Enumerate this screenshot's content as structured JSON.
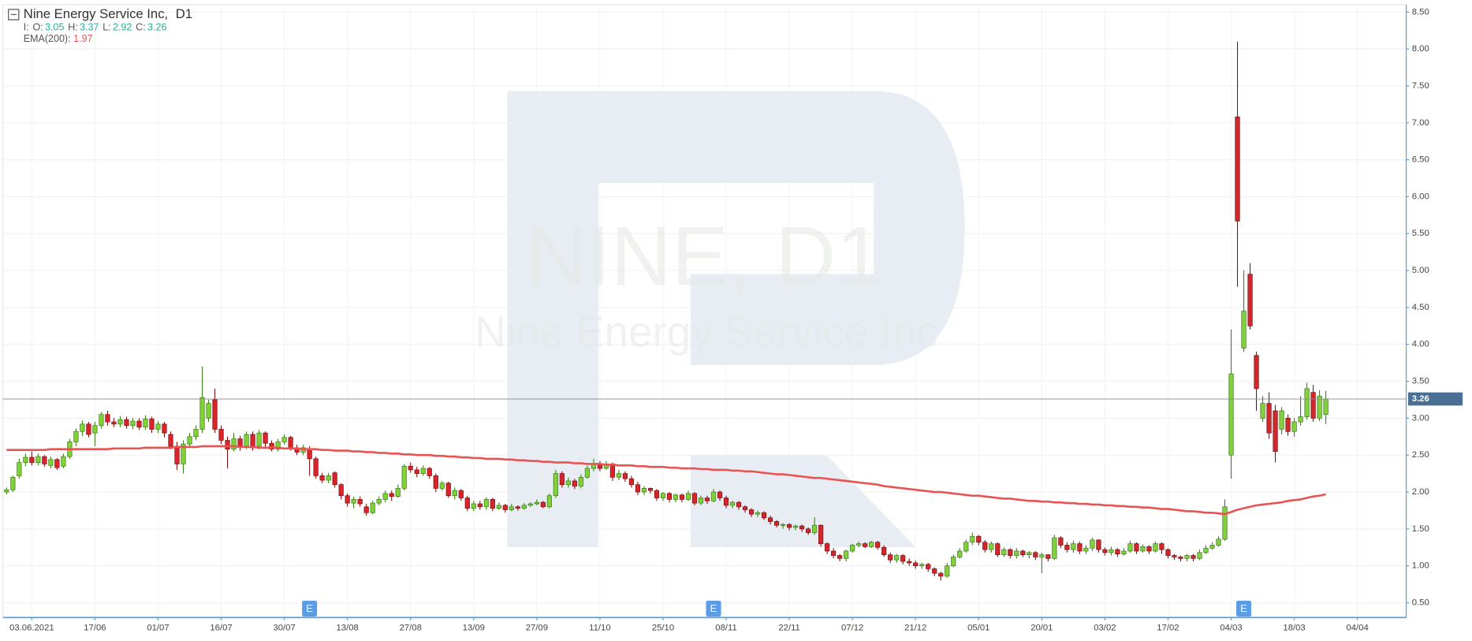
{
  "chart_data": {
    "type": "candlestick",
    "title": "Nine Energy Service Inc,",
    "timeframe": "D1",
    "ohlc_prefix": "I:",
    "ohlc_labels": {
      "open": "O:",
      "high": "H:",
      "low": "L:",
      "close": "C:"
    },
    "watermark": {
      "symbol": "NINE, D1",
      "name": "Nine Energy Service Inc"
    },
    "colors": {
      "up": "#82d13a",
      "up_edge": "#3b7d1a",
      "down": "#d6262b",
      "down_edge": "#7a1010",
      "ohlc_text": "#26b39a"
    },
    "grid": true,
    "ylim": [
      0.3,
      8.6
    ],
    "yticks": [
      {
        "value": 0.5,
        "label": "0.50"
      },
      {
        "value": 1,
        "label": "1.00"
      },
      {
        "value": 1.5,
        "label": "1.50"
      },
      {
        "value": 2,
        "label": "2.00"
      },
      {
        "value": 2.5,
        "label": "2.50"
      },
      {
        "value": 3,
        "label": "3.00"
      },
      {
        "value": 3.5,
        "label": "3.50"
      },
      {
        "value": 4,
        "label": "4.00"
      },
      {
        "value": 4.5,
        "label": "4.50"
      },
      {
        "value": 5,
        "label": "5.00"
      },
      {
        "value": 5.5,
        "label": "5.50"
      },
      {
        "value": 6,
        "label": "6.00"
      },
      {
        "value": 6.5,
        "label": "6.50"
      },
      {
        "value": 7,
        "label": "7.00"
      },
      {
        "value": 7.5,
        "label": "7.50"
      },
      {
        "value": 8,
        "label": "8.00"
      },
      {
        "value": 8.5,
        "label": "8.50"
      }
    ],
    "earnings": {
      "label": "E",
      "at": [
        48,
        112,
        196
      ]
    },
    "categories": [
      null,
      null,
      null,
      null,
      "03.06.2021",
      null,
      null,
      null,
      null,
      null,
      null,
      null,
      null,
      null,
      "17/06",
      null,
      null,
      null,
      null,
      null,
      null,
      null,
      null,
      null,
      "01/07",
      null,
      null,
      null,
      null,
      null,
      null,
      null,
      null,
      null,
      "16/07",
      null,
      null,
      null,
      null,
      null,
      null,
      null,
      null,
      null,
      "30/07",
      null,
      null,
      null,
      null,
      null,
      null,
      null,
      null,
      null,
      "13/08",
      null,
      null,
      null,
      null,
      null,
      null,
      null,
      null,
      null,
      "27/08",
      null,
      null,
      null,
      null,
      null,
      null,
      null,
      null,
      null,
      "13/09",
      null,
      null,
      null,
      null,
      null,
      null,
      null,
      null,
      null,
      "27/09",
      null,
      null,
      null,
      null,
      null,
      null,
      null,
      null,
      null,
      "11/10",
      null,
      null,
      null,
      null,
      null,
      null,
      null,
      null,
      null,
      "25/10",
      null,
      null,
      null,
      null,
      null,
      null,
      null,
      null,
      null,
      "08/11",
      null,
      null,
      null,
      null,
      null,
      null,
      null,
      null,
      null,
      "22/11",
      null,
      null,
      null,
      null,
      null,
      null,
      null,
      null,
      null,
      "07/12",
      null,
      null,
      null,
      null,
      null,
      null,
      null,
      null,
      null,
      "21/12",
      null,
      null,
      null,
      null,
      null,
      null,
      null,
      null,
      null,
      "05/01",
      null,
      null,
      null,
      null,
      null,
      null,
      null,
      null,
      null,
      "20/01",
      null,
      null,
      null,
      null,
      null,
      null,
      null,
      null,
      null,
      "03/02",
      null,
      null,
      null,
      null,
      null,
      null,
      null,
      null,
      null,
      "17/02",
      null,
      null,
      null,
      null,
      null,
      null,
      null,
      null,
      null,
      "04/03",
      null,
      null,
      null,
      null,
      null,
      null,
      null,
      null,
      null,
      "18/03",
      null,
      null,
      null,
      null,
      null,
      null,
      null,
      null,
      null,
      "04/04"
    ],
    "open": [
      2.0,
      2.03,
      2.22,
      2.4,
      2.47,
      2.4,
      2.48,
      2.36,
      2.44,
      2.35,
      2.48,
      2.68,
      2.82,
      2.92,
      2.8,
      2.9,
      3.05,
      2.95,
      2.92,
      2.98,
      2.9,
      2.96,
      2.88,
      2.99,
      2.85,
      2.92,
      2.78,
      2.62,
      2.38,
      2.65,
      2.75,
      2.85,
      3.0,
      3.25,
      2.85,
      2.7,
      2.58,
      2.72,
      2.62,
      2.78,
      2.62,
      2.8,
      2.66,
      2.58,
      2.68,
      2.74,
      2.6,
      2.54,
      2.58,
      2.45,
      2.22,
      2.16,
      2.26,
      2.1,
      1.95,
      1.85,
      1.9,
      1.8,
      1.72,
      1.85,
      1.9,
      1.98,
      1.94,
      2.05,
      2.35,
      2.3,
      2.25,
      2.32,
      2.22,
      2.05,
      2.12,
      1.95,
      2.02,
      1.92,
      1.78,
      1.84,
      1.8,
      1.9,
      1.78,
      1.82,
      1.76,
      1.8,
      1.78,
      1.82,
      1.84,
      1.86,
      1.8,
      1.95,
      2.25,
      2.1,
      2.15,
      2.08,
      2.2,
      2.32,
      2.38,
      2.32,
      2.38,
      2.2,
      2.25,
      2.18,
      2.1,
      2.0,
      2.05,
      2.02,
      1.92,
      1.98,
      1.9,
      1.96,
      1.9,
      1.98,
      1.85,
      1.92,
      1.88,
      2.0,
      1.92,
      1.82,
      1.86,
      1.8,
      1.76,
      1.7,
      1.72,
      1.65,
      1.6,
      1.55,
      1.56,
      1.52,
      1.54,
      1.5,
      1.45,
      1.55,
      1.3,
      1.2,
      1.14,
      1.1,
      1.2,
      1.28,
      1.3,
      1.26,
      1.32,
      1.25,
      1.15,
      1.08,
      1.14,
      1.06,
      1.04,
      1.0,
      1.02,
      0.96,
      0.9,
      0.86,
      1.0,
      1.12,
      1.2,
      1.32,
      1.4,
      1.32,
      1.22,
      1.3,
      1.15,
      1.22,
      1.14,
      1.2,
      1.15,
      1.18,
      1.12,
      1.15,
      1.1,
      1.38,
      1.28,
      1.22,
      1.3,
      1.2,
      1.24,
      1.35,
      1.22,
      1.18,
      1.22,
      1.16,
      1.2,
      1.3,
      1.2,
      1.26,
      1.2,
      1.3,
      1.22,
      1.14,
      1.12,
      1.1,
      1.14,
      1.1,
      1.18,
      1.24,
      1.28,
      1.36,
      2.5,
      7.08,
      3.95,
      4.95,
      3.85,
      3.0,
      3.2,
      3.1,
      2.85,
      3.0,
      2.82,
      2.95,
      3.02,
      3.35,
      3.0,
      3.05,
      null,
      null,
      null,
      null,
      null
    ],
    "high": [
      2.06,
      2.22,
      2.45,
      2.52,
      2.55,
      2.52,
      2.5,
      2.48,
      2.46,
      2.52,
      2.72,
      2.86,
      2.97,
      2.95,
      2.95,
      3.08,
      3.1,
      3.0,
      3.03,
      3.02,
      3.0,
      3.0,
      3.04,
      3.02,
      2.96,
      2.95,
      2.82,
      2.68,
      2.7,
      2.8,
      2.9,
      3.7,
      3.25,
      3.4,
      2.9,
      2.75,
      2.8,
      2.76,
      2.82,
      2.82,
      2.84,
      2.82,
      2.7,
      2.72,
      2.78,
      2.76,
      2.64,
      2.64,
      2.62,
      2.48,
      2.26,
      2.26,
      2.28,
      2.12,
      1.98,
      1.94,
      1.94,
      1.84,
      1.88,
      1.94,
      2.02,
      2.02,
      2.1,
      2.38,
      2.4,
      2.34,
      2.36,
      2.34,
      2.25,
      2.15,
      2.14,
      2.06,
      2.04,
      1.95,
      1.88,
      1.88,
      1.93,
      1.92,
      1.86,
      1.84,
      1.84,
      1.82,
      1.85,
      1.86,
      1.9,
      1.88,
      1.98,
      2.3,
      2.28,
      2.2,
      2.18,
      2.24,
      2.36,
      2.45,
      2.42,
      2.42,
      2.4,
      2.3,
      2.28,
      2.22,
      2.14,
      2.08,
      2.06,
      2.04,
      2.0,
      2.0,
      1.98,
      1.98,
      2.02,
      2.0,
      1.95,
      1.95,
      2.04,
      2.02,
      1.95,
      1.88,
      1.88,
      1.82,
      1.78,
      1.75,
      1.74,
      1.68,
      1.62,
      1.58,
      1.58,
      1.56,
      1.56,
      1.52,
      1.66,
      1.56,
      1.32,
      1.24,
      1.16,
      1.22,
      1.3,
      1.33,
      1.32,
      1.34,
      1.34,
      1.28,
      1.18,
      1.16,
      1.16,
      1.1,
      1.07,
      1.04,
      1.04,
      0.98,
      0.92,
      1.04,
      1.15,
      1.24,
      1.35,
      1.45,
      1.42,
      1.35,
      1.33,
      1.32,
      1.25,
      1.24,
      1.24,
      1.22,
      1.2,
      1.2,
      1.18,
      1.16,
      1.42,
      1.4,
      1.32,
      1.34,
      1.33,
      1.28,
      1.38,
      1.36,
      1.25,
      1.26,
      1.24,
      1.24,
      1.34,
      1.32,
      1.29,
      1.28,
      1.33,
      1.32,
      1.24,
      1.16,
      1.14,
      1.16,
      1.16,
      1.22,
      1.28,
      1.32,
      1.4,
      1.9,
      4.2,
      8.1,
      5.0,
      5.1,
      3.9,
      3.3,
      3.35,
      3.18,
      3.15,
      3.05,
      3.0,
      3.3,
      3.48,
      3.45,
      3.38,
      3.37,
      null,
      null,
      null,
      null,
      null
    ],
    "low": [
      1.97,
      2.0,
      2.18,
      2.35,
      2.36,
      2.36,
      2.34,
      2.32,
      2.3,
      2.32,
      2.45,
      2.62,
      2.76,
      2.74,
      2.62,
      2.86,
      2.9,
      2.88,
      2.88,
      2.86,
      2.85,
      2.84,
      2.84,
      2.8,
      2.8,
      2.74,
      2.58,
      2.3,
      2.25,
      2.6,
      2.7,
      2.8,
      2.95,
      2.8,
      2.65,
      2.32,
      2.55,
      2.56,
      2.58,
      2.56,
      2.58,
      2.6,
      2.55,
      2.55,
      2.64,
      2.56,
      2.5,
      2.5,
      2.22,
      2.18,
      2.12,
      2.12,
      2.06,
      1.9,
      1.8,
      1.78,
      1.8,
      1.68,
      1.7,
      1.82,
      1.86,
      1.88,
      1.92,
      2.02,
      2.26,
      2.2,
      2.22,
      2.18,
      2.0,
      2.02,
      1.92,
      1.9,
      1.88,
      1.74,
      1.74,
      1.76,
      1.76,
      1.74,
      1.76,
      1.72,
      1.74,
      1.75,
      1.76,
      1.8,
      1.82,
      1.78,
      1.78,
      1.92,
      2.06,
      2.06,
      2.04,
      2.05,
      2.18,
      2.28,
      2.28,
      2.3,
      2.15,
      2.16,
      2.14,
      2.06,
      1.96,
      1.96,
      1.98,
      1.88,
      1.88,
      1.86,
      1.86,
      1.86,
      1.88,
      1.82,
      1.82,
      1.84,
      1.86,
      1.88,
      1.78,
      1.78,
      1.76,
      1.72,
      1.66,
      1.66,
      1.62,
      1.56,
      1.52,
      1.5,
      1.48,
      1.48,
      1.46,
      1.42,
      1.42,
      1.26,
      1.16,
      1.1,
      1.06,
      1.06,
      1.18,
      1.25,
      1.24,
      1.24,
      1.22,
      1.12,
      1.04,
      1.04,
      1.02,
      1.0,
      0.96,
      0.96,
      0.92,
      0.86,
      0.8,
      0.84,
      0.98,
      1.1,
      1.18,
      1.28,
      1.28,
      1.18,
      1.18,
      1.12,
      1.12,
      1.1,
      1.1,
      1.12,
      1.1,
      1.08,
      0.9,
      1.06,
      1.08,
      1.24,
      1.18,
      1.18,
      1.16,
      1.16,
      1.2,
      1.18,
      1.14,
      1.14,
      1.12,
      1.14,
      1.18,
      1.16,
      1.18,
      1.16,
      1.18,
      1.16,
      1.1,
      1.08,
      1.06,
      1.06,
      1.06,
      1.08,
      1.16,
      1.22,
      1.26,
      1.34,
      2.18,
      4.78,
      3.9,
      4.2,
      3.1,
      2.95,
      2.72,
      2.4,
      2.78,
      2.76,
      2.75,
      2.9,
      2.98,
      2.95,
      2.96,
      2.92,
      null,
      null,
      null,
      null,
      null
    ],
    "close": [
      2.03,
      2.2,
      2.4,
      2.47,
      2.4,
      2.48,
      2.38,
      2.44,
      2.33,
      2.48,
      2.68,
      2.82,
      2.92,
      2.78,
      2.9,
      3.05,
      2.95,
      2.92,
      2.98,
      2.9,
      2.96,
      2.88,
      2.99,
      2.85,
      2.92,
      2.8,
      2.62,
      2.38,
      2.65,
      2.75,
      2.85,
      3.28,
      3.2,
      2.85,
      2.7,
      2.58,
      2.72,
      2.62,
      2.78,
      2.6,
      2.8,
      2.66,
      2.58,
      2.68,
      2.74,
      2.6,
      2.54,
      2.6,
      2.45,
      2.22,
      2.16,
      2.22,
      2.1,
      1.95,
      1.85,
      1.9,
      1.84,
      1.72,
      1.85,
      1.9,
      1.98,
      1.94,
      2.05,
      2.35,
      2.3,
      2.25,
      2.32,
      2.22,
      2.05,
      2.12,
      1.95,
      2.02,
      1.92,
      1.78,
      1.84,
      1.8,
      1.9,
      1.78,
      1.82,
      1.76,
      1.8,
      1.78,
      1.82,
      1.84,
      1.86,
      1.8,
      1.95,
      2.25,
      2.1,
      2.15,
      2.08,
      2.2,
      2.32,
      2.38,
      2.32,
      2.38,
      2.2,
      2.25,
      2.18,
      2.1,
      2.0,
      2.05,
      2.02,
      1.92,
      1.98,
      1.9,
      1.96,
      1.9,
      1.98,
      1.85,
      1.92,
      1.88,
      2.0,
      1.92,
      1.82,
      1.86,
      1.8,
      1.76,
      1.7,
      1.72,
      1.65,
      1.6,
      1.55,
      1.56,
      1.52,
      1.54,
      1.5,
      1.45,
      1.55,
      1.3,
      1.2,
      1.14,
      1.1,
      1.2,
      1.28,
      1.3,
      1.26,
      1.32,
      1.25,
      1.15,
      1.08,
      1.14,
      1.06,
      1.04,
      1.0,
      1.02,
      0.96,
      0.9,
      0.86,
      1.0,
      1.12,
      1.2,
      1.32,
      1.4,
      1.32,
      1.22,
      1.3,
      1.15,
      1.22,
      1.14,
      1.2,
      1.15,
      1.18,
      1.12,
      1.15,
      1.1,
      1.38,
      1.28,
      1.22,
      1.3,
      1.2,
      1.24,
      1.35,
      1.22,
      1.18,
      1.22,
      1.16,
      1.2,
      1.3,
      1.2,
      1.26,
      1.2,
      1.3,
      1.22,
      1.14,
      1.12,
      1.1,
      1.14,
      1.1,
      1.18,
      1.24,
      1.28,
      1.36,
      1.8,
      3.6,
      5.67,
      4.45,
      4.25,
      3.4,
      3.2,
      2.8,
      2.55,
      3.1,
      2.82,
      2.95,
      3.02,
      3.4,
      3.0,
      3.3,
      3.26,
      null,
      null,
      null,
      null,
      null
    ],
    "ema": {
      "label": "EMA(200):",
      "color": "#e85454",
      "values": [
        2.57,
        2.57,
        2.57,
        2.57,
        2.57,
        2.57,
        2.57,
        2.58,
        2.58,
        2.58,
        2.58,
        2.58,
        2.58,
        2.58,
        2.58,
        2.58,
        2.58,
        2.59,
        2.59,
        2.59,
        2.59,
        2.59,
        2.6,
        2.6,
        2.6,
        2.6,
        2.6,
        2.61,
        2.61,
        2.61,
        2.61,
        2.62,
        2.62,
        2.62,
        2.62,
        2.62,
        2.62,
        2.61,
        2.61,
        2.61,
        2.6,
        2.6,
        2.6,
        2.6,
        2.59,
        2.59,
        2.59,
        2.58,
        2.58,
        2.58,
        2.57,
        2.57,
        2.56,
        2.56,
        2.56,
        2.55,
        2.55,
        2.54,
        2.54,
        2.53,
        2.53,
        2.52,
        2.52,
        2.51,
        2.51,
        2.5,
        2.5,
        2.5,
        2.49,
        2.49,
        2.48,
        2.48,
        2.47,
        2.47,
        2.46,
        2.46,
        2.45,
        2.45,
        2.45,
        2.44,
        2.44,
        2.43,
        2.43,
        2.42,
        2.42,
        2.41,
        2.41,
        2.4,
        2.4,
        2.4,
        2.39,
        2.39,
        2.38,
        2.38,
        2.38,
        2.37,
        2.37,
        2.36,
        2.36,
        2.36,
        2.35,
        2.35,
        2.34,
        2.34,
        2.34,
        2.33,
        2.33,
        2.32,
        2.32,
        2.32,
        2.31,
        2.31,
        2.3,
        2.3,
        2.3,
        2.29,
        2.29,
        2.28,
        2.28,
        2.27,
        2.26,
        2.25,
        2.24,
        2.24,
        2.23,
        2.22,
        2.21,
        2.2,
        2.19,
        2.19,
        2.18,
        2.17,
        2.16,
        2.15,
        2.14,
        2.13,
        2.12,
        2.11,
        2.1,
        2.08,
        2.07,
        2.06,
        2.05,
        2.04,
        2.03,
        2.02,
        2.01,
        2.0,
        2.0,
        1.99,
        1.98,
        1.97,
        1.96,
        1.95,
        1.95,
        1.94,
        1.93,
        1.92,
        1.91,
        1.91,
        1.9,
        1.89,
        1.88,
        1.88,
        1.87,
        1.87,
        1.86,
        1.86,
        1.85,
        1.85,
        1.84,
        1.84,
        1.83,
        1.83,
        1.82,
        1.82,
        1.81,
        1.81,
        1.8,
        1.8,
        1.79,
        1.79,
        1.78,
        1.77,
        1.77,
        1.76,
        1.75,
        1.74,
        1.74,
        1.73,
        1.72,
        1.72,
        1.71,
        1.7,
        1.73,
        1.76,
        1.78,
        1.8,
        1.82,
        1.83,
        1.84,
        1.85,
        1.86,
        1.88,
        1.89,
        1.9,
        1.92,
        1.94,
        1.95,
        1.97,
        null,
        null,
        null,
        null,
        null
      ]
    }
  }
}
